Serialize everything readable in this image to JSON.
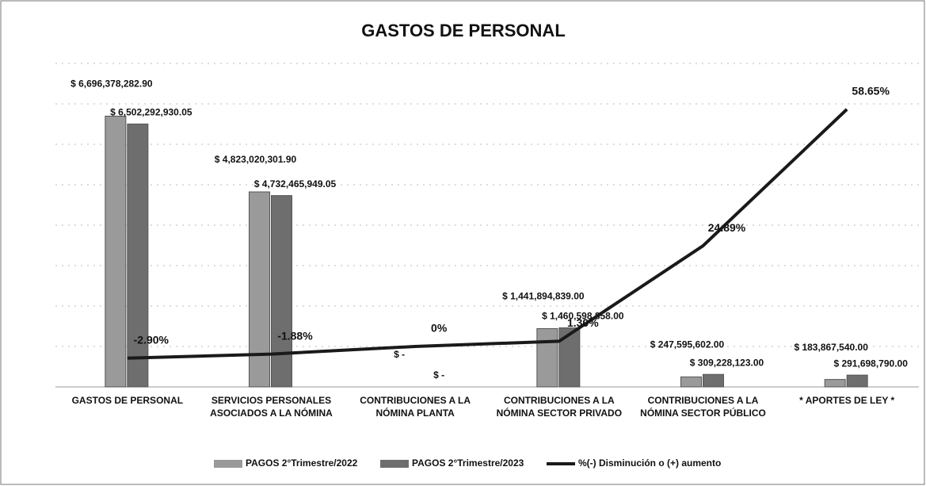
{
  "chart_data": {
    "type": "bar-line",
    "title": "GASTOS DE PERSONAL",
    "categories": [
      "GASTOS DE PERSONAL",
      "SERVICIOS PERSONALES ASOCIADOS A LA NÓMINA",
      "CONTRIBUCIONES A LA NÓMINA PLANTA",
      "CONTRIBUCIONES A LA NÓMINA SECTOR PRIVADO",
      "CONTRIBUCIONES A LA NÓMINA SECTOR PÚBLICO",
      "* APORTES DE LEY *"
    ],
    "series": [
      {
        "name": "PAGOS 2°Trimestre/2022",
        "color": "#9a9a9a",
        "values": [
          6696378282.9,
          4823020301.9,
          0,
          1441894839.0,
          247595602.0,
          183867540.0
        ],
        "value_labels": [
          "$ 6,696,378,282.90",
          "$ 4,823,020,301.90",
          "$ -",
          "$ 1,441,894,839.00",
          "$ 247,595,602.00",
          "$ 183,867,540.00"
        ]
      },
      {
        "name": "PAGOS 2°Trimestre/2023",
        "color": "#6e6e6e",
        "values": [
          6502292930.05,
          4732465949.05,
          0,
          1460598858.0,
          309228123.0,
          291698790.0
        ],
        "value_labels": [
          "$ 6,502,292,930.05",
          "$ 4,732,465,949.05",
          "$ -",
          "$ 1,460,598,858.00",
          "$ 309,228,123.00",
          "$ 291,698,790.00"
        ]
      },
      {
        "name": "%(-) Disminución o (+) aumento",
        "color": "#1a1a1a",
        "axis": "y2",
        "values": [
          -2.9,
          -1.88,
          0,
          1.3,
          24.89,
          58.65
        ],
        "value_labels": [
          "-2.90%",
          "-1.88%",
          "0%",
          "1.30%",
          "24.89%",
          "58.65%"
        ]
      }
    ],
    "ylim": [
      0,
      8000000000
    ],
    "y2lim": [
      -10,
      70
    ]
  }
}
